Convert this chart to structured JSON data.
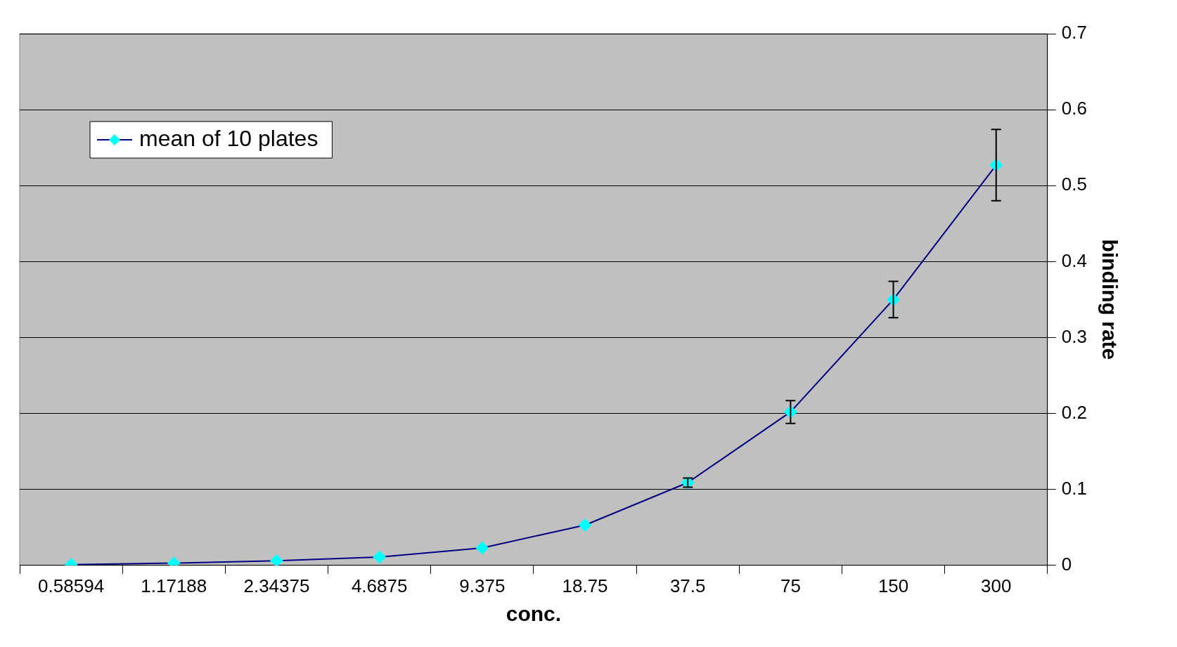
{
  "chart_data": {
    "type": "line",
    "xlabel": "conc.",
    "ylabel": "binding rate",
    "categories": [
      "0.58594",
      "1.17188",
      "2.34375",
      "4.6875",
      "9.375",
      "18.75",
      "37.5",
      "75",
      "150",
      "300"
    ],
    "series": [
      {
        "name": "mean of 10 plates",
        "color": "#000080",
        "values": [
          0.001,
          0.003,
          0.006,
          0.011,
          0.023,
          0.053,
          0.109,
          0.202,
          0.35,
          0.527
        ],
        "errors": [
          null,
          null,
          null,
          null,
          null,
          null,
          0.006,
          0.015,
          0.024,
          0.047
        ]
      }
    ],
    "ylim": [
      0,
      0.7
    ],
    "yticks": [
      0,
      0.1,
      0.2,
      0.3,
      0.4,
      0.5,
      0.6,
      0.7
    ],
    "grid": "y",
    "legend": "top left",
    "marker": "diamond",
    "line_style": "solid"
  }
}
